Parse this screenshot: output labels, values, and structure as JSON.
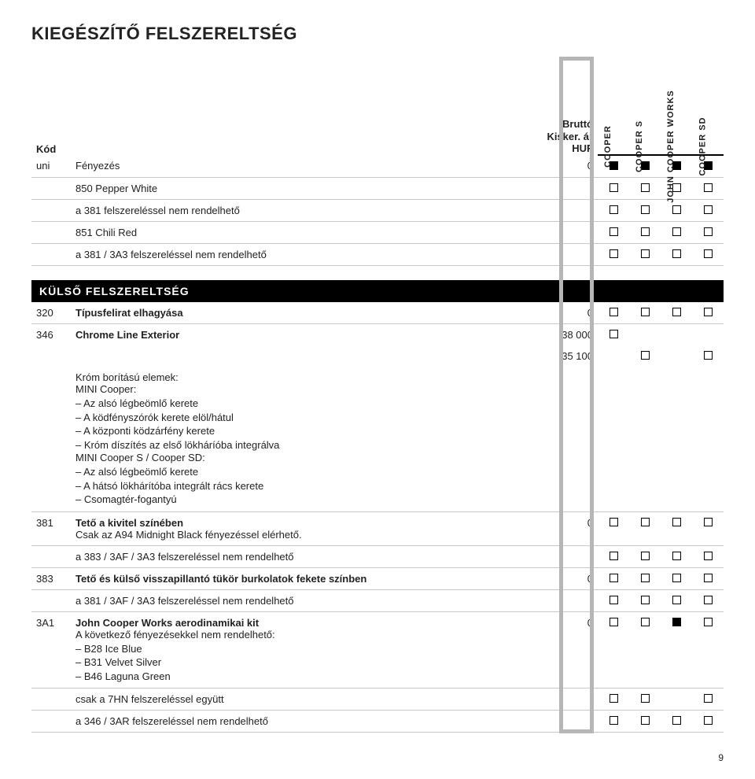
{
  "page": {
    "title": "KIEGÉSZÍTŐ FELSZERELTSÉG",
    "number": "9"
  },
  "header": {
    "code_label": "Kód",
    "price_label_1": "Bruttó",
    "price_label_2": "Kisker. ár",
    "price_label_3": "HUF",
    "col_labels": [
      "COOPER",
      "COOPER S",
      "JOHN COOPER WORKS",
      "COOPER SD"
    ]
  },
  "colors": {
    "border": "#c8c8c8",
    "text": "#222222",
    "section_bg": "#000000",
    "section_fg": "#ffffff",
    "highlight_border": "#b6b6b6"
  },
  "rows_top": [
    {
      "code": "uni",
      "desc": "Fényezés",
      "price": "0",
      "marks": [
        "f",
        "f",
        "f",
        "f"
      ]
    },
    {
      "code": "",
      "desc": "850 Pepper White",
      "price": "",
      "marks": [
        "e",
        "e",
        "e",
        "e"
      ]
    },
    {
      "code": "",
      "desc": "a 381 felszereléssel nem rendelhető",
      "price": "",
      "marks": [
        "e",
        "e",
        "e",
        "e"
      ]
    },
    {
      "code": "",
      "desc": "851 Chili Red",
      "price": "",
      "marks": [
        "e",
        "e",
        "e",
        "e"
      ]
    },
    {
      "code": "",
      "desc": "a 381 / 3A3 felszereléssel nem rendelhető",
      "price": "",
      "marks": [
        "e",
        "e",
        "e",
        "e"
      ]
    }
  ],
  "section_ext": "KÜLSŐ FELSZERELTSÉG",
  "rows_ext": [
    {
      "code": "320",
      "desc_bold": "Típusfelirat elhagyása",
      "price": "0",
      "marks": [
        "e",
        "e",
        "e",
        "e"
      ]
    },
    {
      "code": "346",
      "desc_bold": "Chrome Line Exterior",
      "price": "38 000",
      "marks": [
        "e",
        "",
        "",
        ""
      ],
      "no_border": true
    },
    {
      "code": "",
      "desc": "",
      "price": "35 100",
      "marks": [
        "",
        "e",
        "",
        "e"
      ],
      "no_border": true
    },
    {
      "code": "",
      "desc_lines": [
        "Króm borítású elemek:",
        "MINI Cooper:"
      ],
      "dash_list": [
        "Az alsó légbeömlő kerete",
        "A ködfényszórók kerete elöl/hátul",
        "A központi ködzárfény kerete",
        "Króm díszítés az első lökháríóba integrálva"
      ],
      "desc_lines_2": [
        "MINI Cooper S / Cooper SD:"
      ],
      "dash_list_2": [
        "Az alsó légbeömlő kerete",
        "A hátsó lökhárítóba integrált rács kerete",
        "Csomagtér-fogantyú"
      ],
      "price": "",
      "marks": [
        "",
        "",
        "",
        ""
      ]
    },
    {
      "code": "381",
      "desc_bold": "Tető a kivitel színében",
      "desc_after": "Csak az A94 Midnight Black fényezéssel elérhető.",
      "price": "0",
      "marks": [
        "e",
        "e",
        "e",
        "e"
      ]
    },
    {
      "code": "",
      "desc": "a 383 / 3AF / 3A3 felszereléssel nem rendelhető",
      "price": "",
      "marks": [
        "e",
        "e",
        "e",
        "e"
      ]
    },
    {
      "code": "383",
      "desc_bold": "Tető és külső visszapillantó tükör burkolatok fekete színben",
      "price": "0",
      "marks": [
        "e",
        "e",
        "e",
        "e"
      ]
    },
    {
      "code": "",
      "desc": "a 381 / 3AF / 3A3 felszereléssel nem rendelhető",
      "price": "",
      "marks": [
        "e",
        "e",
        "e",
        "e"
      ]
    },
    {
      "code": "3A1",
      "desc_bold": "John Cooper Works aerodinamikai kit",
      "desc_after": "A következő fényezésekkel nem rendelhető:",
      "dash_list": [
        "B28 Ice Blue",
        "B31 Velvet Silver",
        "B46 Laguna Green"
      ],
      "price": "0",
      "marks": [
        "e",
        "e",
        "f",
        "e"
      ]
    },
    {
      "code": "",
      "desc": "csak a 7HN felszereléssel együtt",
      "price": "",
      "marks": [
        "e",
        "e",
        "",
        "e"
      ]
    },
    {
      "code": "",
      "desc": "a 346 / 3AR felszereléssel nem rendelhető",
      "price": "",
      "marks": [
        "e",
        "e",
        "e",
        "e"
      ]
    }
  ]
}
